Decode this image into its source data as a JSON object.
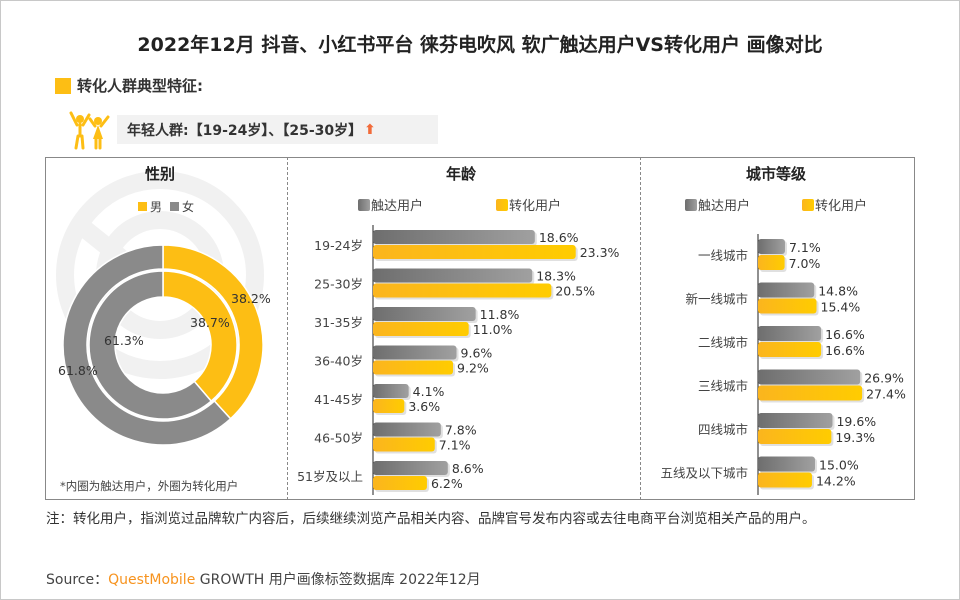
{
  "title": "2022年12月 抖音、小红书平台 徕芬电吹风 软广触达用户VS转化用户 画像对比",
  "feature_heading": "转化人群典型特征:",
  "feature_tag": "年轻人群:【19-24岁】、【25-30岁】",
  "feature_tag_arrow": "⬆",
  "watermark": "QUESTMOBILE",
  "colors": {
    "reach": "#8a8a8a",
    "convert": "#FDBE14",
    "arrow": "#F26B3A"
  },
  "legend": {
    "reach": "触达用户",
    "convert": "转化用户"
  },
  "chart_data": [
    {
      "type": "pie",
      "title": "性别",
      "legend": [
        "男",
        "女"
      ],
      "inner_ring": {
        "series": "触达用户",
        "values": [
          38.7,
          61.3
        ],
        "labels": [
          "38.7%",
          "61.3%"
        ]
      },
      "outer_ring": {
        "series": "转化用户",
        "values": [
          38.2,
          61.8
        ],
        "labels": [
          "38.2%",
          "61.8%"
        ]
      },
      "footnote": "*内圈为触达用户，外圈为转化用户"
    },
    {
      "type": "bar",
      "orientation": "horizontal",
      "title": "年龄",
      "categories": [
        "19-24岁",
        "25-30岁",
        "31-35岁",
        "36-40岁",
        "41-45岁",
        "46-50岁",
        "51岁及以上"
      ],
      "series": [
        {
          "name": "触达用户",
          "values": [
            18.6,
            18.3,
            11.8,
            9.6,
            4.1,
            7.8,
            8.6
          ]
        },
        {
          "name": "转化用户",
          "values": [
            23.3,
            20.5,
            11.0,
            9.2,
            3.6,
            7.1,
            6.2
          ]
        }
      ],
      "legend": "top"
    },
    {
      "type": "bar",
      "orientation": "horizontal",
      "title": "城市等级",
      "categories": [
        "一线城市",
        "新一线城市",
        "二线城市",
        "三线城市",
        "四线城市",
        "五线及以下城市"
      ],
      "series": [
        {
          "name": "触达用户",
          "values": [
            7.1,
            14.8,
            16.6,
            26.9,
            19.6,
            15.0
          ]
        },
        {
          "name": "转化用户",
          "values": [
            7.0,
            15.4,
            16.6,
            27.4,
            19.3,
            14.2
          ]
        }
      ],
      "legend": "top"
    }
  ],
  "note": "注：转化用户，指浏览过品牌软广内容后，后续继续浏览产品相关内容、品牌官号发布内容或去往电商平台浏览相关产品的用户。",
  "source": {
    "label": "Source：",
    "brand": "QuestMobile",
    "text": " GROWTH 用户画像标签数据库 2022年12月"
  }
}
